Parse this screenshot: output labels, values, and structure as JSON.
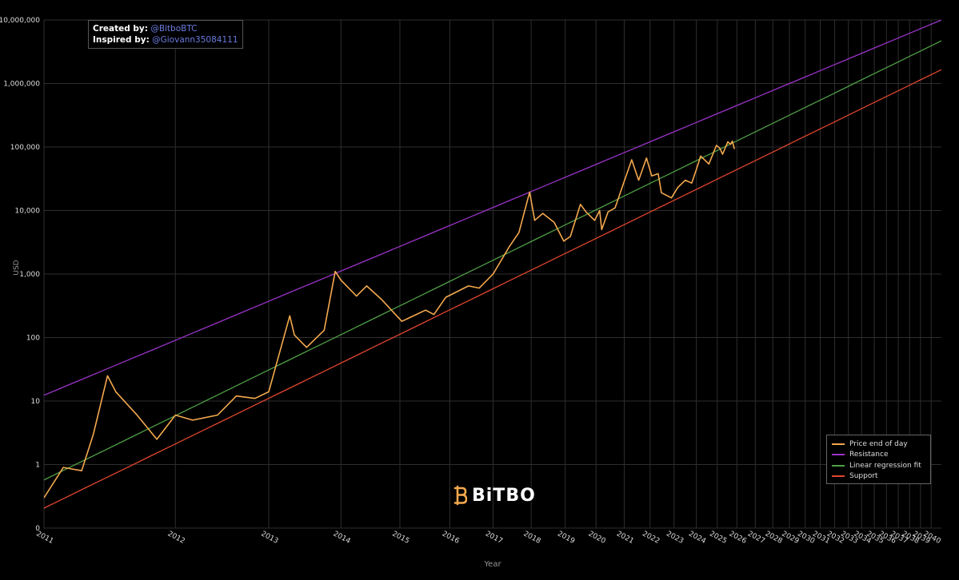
{
  "credits": {
    "created_label": "Created by:",
    "created_handle": "@BitboBTC",
    "inspired_label": "Inspired by:",
    "inspired_handle": "@Giovann35084111"
  },
  "brand": {
    "name": "BiTBO",
    "icon": "bitbo-logo-icon"
  },
  "colors": {
    "background": "#000000",
    "price": "#f4a94e",
    "resistance": "#9b33c8",
    "regression": "#4f9f46",
    "support": "#e2462f",
    "grid": "#333333"
  },
  "chart_data": {
    "type": "line",
    "xlabel": "Year",
    "ylabel": "USD",
    "yscale": "log",
    "xscale": "log (days since genesis)",
    "grid": true,
    "legend_position": "bottom-right",
    "x_ticks": [
      "2011",
      "2012",
      "2013",
      "2014",
      "2015",
      "2016",
      "2017",
      "2018",
      "2019",
      "2020",
      "2021",
      "2022",
      "2023",
      "2024",
      "2025",
      "2026",
      "2027",
      "2028",
      "2029",
      "2030",
      "2031",
      "2032",
      "2033",
      "2034",
      "2035",
      "2036",
      "2037",
      "2038",
      "2039",
      "2040"
    ],
    "y_ticks": [
      "0",
      "1",
      "10",
      "100",
      "1,000",
      "10,000",
      "100,000",
      "1,000,000",
      "10,000,000"
    ],
    "series": [
      {
        "name": "Price end of day",
        "color": "#f4a94e",
        "points": [
          [
            "2011-01-01",
            0.3
          ],
          [
            "2011-02-15",
            0.9
          ],
          [
            "2011-04-01",
            0.8
          ],
          [
            "2011-05-01",
            3
          ],
          [
            "2011-06-08",
            25
          ],
          [
            "2011-07-01",
            14
          ],
          [
            "2011-09-01",
            6
          ],
          [
            "2011-11-01",
            2.5
          ],
          [
            "2012-01-01",
            6
          ],
          [
            "2012-03-01",
            5
          ],
          [
            "2012-06-01",
            6
          ],
          [
            "2012-08-15",
            12
          ],
          [
            "2012-11-01",
            11
          ],
          [
            "2013-01-01",
            14
          ],
          [
            "2013-04-09",
            220
          ],
          [
            "2013-05-01",
            110
          ],
          [
            "2013-07-01",
            70
          ],
          [
            "2013-10-01",
            130
          ],
          [
            "2013-11-30",
            1100
          ],
          [
            "2014-01-01",
            800
          ],
          [
            "2014-04-01",
            450
          ],
          [
            "2014-06-01",
            650
          ],
          [
            "2014-09-01",
            400
          ],
          [
            "2015-01-14",
            180
          ],
          [
            "2015-07-01",
            270
          ],
          [
            "2015-09-01",
            230
          ],
          [
            "2015-12-01",
            430
          ],
          [
            "2016-06-01",
            650
          ],
          [
            "2016-09-01",
            600
          ],
          [
            "2017-01-01",
            1000
          ],
          [
            "2017-06-01",
            2700
          ],
          [
            "2017-09-01",
            4500
          ],
          [
            "2017-12-17",
            19500
          ],
          [
            "2018-02-06",
            7000
          ],
          [
            "2018-05-01",
            9000
          ],
          [
            "2018-09-01",
            6500
          ],
          [
            "2018-12-15",
            3300
          ],
          [
            "2019-03-01",
            3900
          ],
          [
            "2019-06-26",
            12500
          ],
          [
            "2019-09-01",
            9500
          ],
          [
            "2019-12-15",
            7000
          ],
          [
            "2020-02-15",
            10000
          ],
          [
            "2020-03-12",
            5000
          ],
          [
            "2020-06-01",
            9500
          ],
          [
            "2020-09-01",
            11000
          ],
          [
            "2021-01-01",
            29000
          ],
          [
            "2021-04-14",
            63000
          ],
          [
            "2021-07-20",
            30000
          ],
          [
            "2021-11-10",
            67000
          ],
          [
            "2022-01-24",
            35000
          ],
          [
            "2022-05-01",
            38000
          ],
          [
            "2022-06-18",
            19000
          ],
          [
            "2022-11-21",
            15800
          ],
          [
            "2023-03-01",
            23000
          ],
          [
            "2023-07-01",
            30000
          ],
          [
            "2023-10-15",
            27000
          ],
          [
            "2024-01-01",
            44000
          ],
          [
            "2024-03-14",
            72000
          ],
          [
            "2024-08-05",
            54000
          ],
          [
            "2024-12-17",
            106000
          ],
          [
            "2025-02-15",
            96000
          ],
          [
            "2025-04-08",
            77000
          ],
          [
            "2025-07-14",
            121000
          ],
          [
            "2025-09-01",
            110000
          ],
          [
            "2025-10-06",
            124000
          ],
          [
            "2025-11-15",
            93000
          ]
        ]
      },
      {
        "name": "Resistance",
        "color": "#9b33c8",
        "points": [
          [
            "2010-12-15",
            11
          ],
          [
            "2040-12-31",
            10000000
          ]
        ]
      },
      {
        "name": "Linear regression fit",
        "color": "#4f9f46",
        "points": [
          [
            "2010-12-15",
            0.5
          ],
          [
            "2040-12-31",
            4700000
          ]
        ]
      },
      {
        "name": "Support",
        "color": "#e2462f",
        "points": [
          [
            "2010-12-15",
            0.18
          ],
          [
            "2040-12-31",
            1650000
          ]
        ]
      }
    ]
  }
}
